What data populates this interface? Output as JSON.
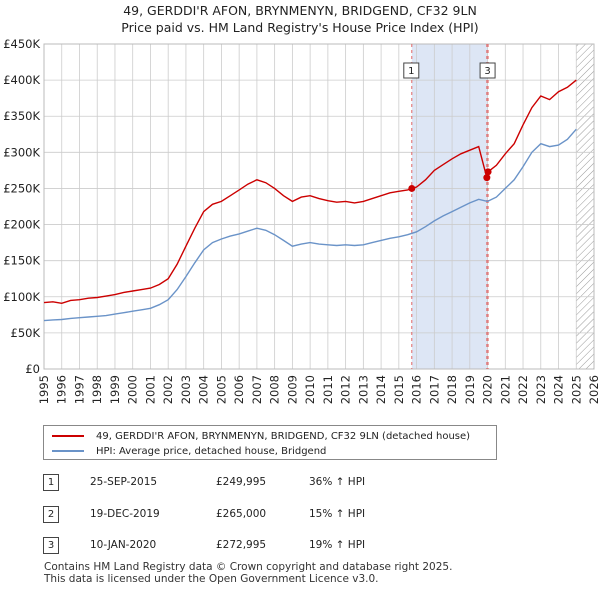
{
  "header": {
    "title_line1": "49, GERDDI'R AFON, BRYNMENYN, BRIDGEND, CF32 9LN",
    "title_line2": "Price paid vs. HM Land Registry's House Price Index (HPI)"
  },
  "colors": {
    "price_line": "#cc0000",
    "hpi_line": "#6a93c8",
    "shade": "#dde6f5",
    "grid": "#cccccc",
    "marker_line": "#e06666"
  },
  "chart_data": {
    "type": "line",
    "title": "Price paid vs. HM Land Registry's House Price Index (HPI)",
    "xlim": [
      1995,
      2026
    ],
    "ylim": [
      0,
      450000
    ],
    "x_ticks": [
      "1995",
      "1996",
      "1997",
      "1998",
      "1999",
      "2000",
      "2001",
      "2002",
      "2003",
      "2004",
      "2005",
      "2006",
      "2007",
      "2008",
      "2009",
      "2010",
      "2011",
      "2012",
      "2013",
      "2014",
      "2015",
      "2016",
      "2017",
      "2018",
      "2019",
      "2020",
      "2021",
      "2022",
      "2023",
      "2024",
      "2025",
      "2026"
    ],
    "y_ticks": [
      {
        "value": 0,
        "label": "£0"
      },
      {
        "value": 50000,
        "label": "£50K"
      },
      {
        "value": 100000,
        "label": "£100K"
      },
      {
        "value": 150000,
        "label": "£150K"
      },
      {
        "value": 200000,
        "label": "£200K"
      },
      {
        "value": 250000,
        "label": "£250K"
      },
      {
        "value": 300000,
        "label": "£300K"
      },
      {
        "value": 350000,
        "label": "£350K"
      },
      {
        "value": 400000,
        "label": "£400K"
      },
      {
        "value": 450000,
        "label": "£450K"
      }
    ],
    "shaded_range": [
      2015.73,
      2020.03
    ],
    "forecast_hatch_start": 2025.0,
    "grid": true,
    "series": [
      {
        "name": "49, GERDDI'R AFON, BRYNMENYN, BRIDGEND, CF32 9LN (detached house)",
        "color": "#cc0000",
        "x": [
          1995.0,
          1995.5,
          1996.0,
          1996.5,
          1997.0,
          1997.5,
          1998.0,
          1998.5,
          1999.0,
          1999.5,
          2000.0,
          2000.5,
          2001.0,
          2001.5,
          2002.0,
          2002.5,
          2003.0,
          2003.5,
          2004.0,
          2004.5,
          2005.0,
          2005.5,
          2006.0,
          2006.5,
          2007.0,
          2007.5,
          2008.0,
          2008.5,
          2009.0,
          2009.5,
          2010.0,
          2010.5,
          2011.0,
          2011.5,
          2012.0,
          2012.5,
          2013.0,
          2013.5,
          2014.0,
          2014.5,
          2015.0,
          2015.5,
          2015.73,
          2016.0,
          2016.5,
          2017.0,
          2017.5,
          2018.0,
          2018.5,
          2019.0,
          2019.5,
          2019.96,
          2020.03,
          2020.5,
          2021.0,
          2021.5,
          2022.0,
          2022.5,
          2023.0,
          2023.5,
          2024.0,
          2024.5,
          2025.0
        ],
        "values": [
          92000,
          93000,
          91000,
          95000,
          96000,
          98000,
          99000,
          101000,
          103000,
          106000,
          108000,
          110000,
          112000,
          117000,
          125000,
          145000,
          170000,
          195000,
          218000,
          228000,
          232000,
          240000,
          248000,
          256000,
          262000,
          258000,
          250000,
          240000,
          232000,
          238000,
          240000,
          236000,
          233000,
          231000,
          232000,
          230000,
          232000,
          236000,
          240000,
          244000,
          246000,
          248000,
          249995,
          252000,
          262000,
          275000,
          283000,
          291000,
          298000,
          303000,
          308000,
          265000,
          272995,
          282000,
          298000,
          312000,
          338000,
          362000,
          378000,
          373000,
          384000,
          390000,
          400000
        ]
      },
      {
        "name": "HPI: Average price, detached house, Bridgend",
        "color": "#6a93c8",
        "x": [
          1995.0,
          1995.5,
          1996.0,
          1996.5,
          1997.0,
          1997.5,
          1998.0,
          1998.5,
          1999.0,
          1999.5,
          2000.0,
          2000.5,
          2001.0,
          2001.5,
          2002.0,
          2002.5,
          2003.0,
          2003.5,
          2004.0,
          2004.5,
          2005.0,
          2005.5,
          2006.0,
          2006.5,
          2007.0,
          2007.5,
          2008.0,
          2008.5,
          2009.0,
          2009.5,
          2010.0,
          2010.5,
          2011.0,
          2011.5,
          2012.0,
          2012.5,
          2013.0,
          2013.5,
          2014.0,
          2014.5,
          2015.0,
          2015.5,
          2016.0,
          2016.5,
          2017.0,
          2017.5,
          2018.0,
          2018.5,
          2019.0,
          2019.5,
          2020.0,
          2020.5,
          2021.0,
          2021.5,
          2022.0,
          2022.5,
          2023.0,
          2023.5,
          2024.0,
          2024.5,
          2025.0
        ],
        "values": [
          67000,
          68000,
          68500,
          70000,
          71000,
          72000,
          73000,
          74000,
          76000,
          78000,
          80000,
          82000,
          84000,
          89000,
          96000,
          110000,
          128000,
          147000,
          165000,
          175000,
          180000,
          184000,
          187000,
          191000,
          195000,
          192000,
          186000,
          178000,
          170000,
          173000,
          175000,
          173000,
          172000,
          171000,
          172000,
          171000,
          172000,
          175000,
          178000,
          181000,
          183000,
          186000,
          190000,
          197000,
          205000,
          212000,
          218000,
          224000,
          230000,
          235000,
          232000,
          238000,
          250000,
          262000,
          280000,
          300000,
          312000,
          308000,
          310000,
          318000,
          332000
        ]
      }
    ],
    "sales": [
      {
        "label": "1",
        "x": 2015.73,
        "value": 249995
      },
      {
        "label": "2",
        "x": 2019.96,
        "value": 265000
      },
      {
        "label": "3",
        "x": 2020.03,
        "value": 272995
      }
    ],
    "marker_boxes": [
      {
        "label": "1",
        "x": 2015.73
      },
      {
        "label": "3",
        "x": 2020.03
      }
    ]
  },
  "legend": {
    "items": [
      {
        "label": "49, GERDDI'R AFON, BRYNMENYN, BRIDGEND, CF32 9LN (detached house)"
      },
      {
        "label": "HPI: Average price, detached house, Bridgend"
      }
    ]
  },
  "transactions": [
    {
      "num": "1",
      "date": "25-SEP-2015",
      "price": "£249,995",
      "hpi": "36% ↑ HPI"
    },
    {
      "num": "2",
      "date": "19-DEC-2019",
      "price": "£265,000",
      "hpi": "15% ↑ HPI"
    },
    {
      "num": "3",
      "date": "10-JAN-2020",
      "price": "£272,995",
      "hpi": "19% ↑ HPI"
    }
  ],
  "footer": {
    "line1": "Contains HM Land Registry data © Crown copyright and database right 2025.",
    "line2": "This data is licensed under the Open Government Licence v3.0."
  }
}
